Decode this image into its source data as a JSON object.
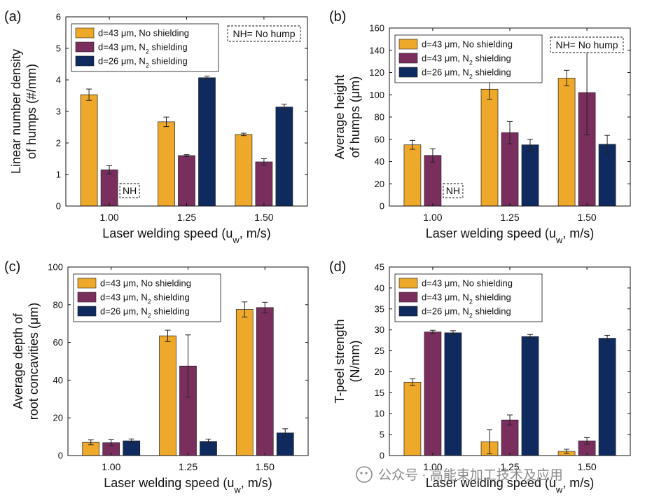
{
  "colors": {
    "s1": "#EEA82A",
    "s2": "#7A2E5E",
    "s3": "#0E2A5E",
    "axis": "#111111",
    "watermark": "#8a8a8a"
  },
  "legend": {
    "s1": {
      "text": "d=43 μm, No shielding"
    },
    "s2": {
      "pre": "d=43 μm, N",
      "sub": "2",
      "post": " shielding"
    },
    "s3": {
      "pre": "d=26 μm, N",
      "sub": "2",
      "post": " shielding"
    }
  },
  "xaxis": {
    "pre": "Laser welding speed (u",
    "sub": "w",
    "post": ", m/s)"
  },
  "nh_note": "NH= No hump",
  "nh_label": "NH",
  "watermark": "公众号 · 高能束加工技术及应用",
  "chart_data": [
    {
      "panel": "(a)",
      "type": "bar",
      "ylabel": [
        "Linear number density",
        "of humps (#/mm)"
      ],
      "categories": [
        "1.00",
        "1.25",
        "1.50"
      ],
      "ylim": [
        0,
        6
      ],
      "yticks": [
        0,
        1,
        2,
        3,
        4,
        5,
        6
      ],
      "series": [
        {
          "name": "d=43 μm, No shielding",
          "values": [
            3.53,
            2.67,
            2.27
          ],
          "errors": [
            0.18,
            0.15,
            0.04
          ]
        },
        {
          "name": "d=43 μm, N2 shielding",
          "values": [
            1.15,
            1.6,
            1.4
          ],
          "errors": [
            0.13,
            0.03,
            0.1
          ]
        },
        {
          "name": "d=26 μm, N2 shielding",
          "values": [
            null,
            4.07,
            3.14
          ],
          "errors": [
            null,
            0.05,
            0.09
          ]
        }
      ],
      "nh_note": true,
      "nh_at_category": 0
    },
    {
      "panel": "(b)",
      "type": "bar",
      "ylabel": [
        "Average height",
        "of humps (μm)"
      ],
      "categories": [
        "1.00",
        "1.25",
        "1.50"
      ],
      "ylim": [
        0,
        160
      ],
      "yticks": [
        0,
        20,
        40,
        60,
        80,
        100,
        120,
        140,
        160
      ],
      "series": [
        {
          "name": "d=43 μm, No shielding",
          "values": [
            55,
            105,
            115
          ],
          "errors": [
            4,
            9,
            7
          ]
        },
        {
          "name": "d=43 μm, N2 shielding",
          "values": [
            45.5,
            66,
            102
          ],
          "errors": [
            6,
            10,
            38
          ]
        },
        {
          "name": "d=26 μm, N2 shielding",
          "values": [
            null,
            55,
            55.5
          ],
          "errors": [
            null,
            5,
            8
          ]
        }
      ],
      "nh_note": true,
      "nh_at_category": 0
    },
    {
      "panel": "(c)",
      "type": "bar",
      "ylabel": [
        "Average depth of",
        "root concavities (μm)"
      ],
      "categories": [
        "1.00",
        "1.25",
        "1.50"
      ],
      "ylim": [
        0,
        100
      ],
      "yticks": [
        0,
        20,
        40,
        60,
        80,
        100
      ],
      "series": [
        {
          "name": "d=43 μm, No shielding",
          "values": [
            7,
            63.5,
            77.5
          ],
          "errors": [
            1.3,
            3,
            4
          ]
        },
        {
          "name": "d=43 μm, N2 shielding",
          "values": [
            6.8,
            47.5,
            78.5
          ],
          "errors": [
            1.6,
            16.5,
            2.8
          ]
        },
        {
          "name": "d=26 μm, N2 shielding",
          "values": [
            7.8,
            7.5,
            12
          ],
          "errors": [
            1,
            1.2,
            2.2
          ]
        }
      ],
      "nh_note": false
    },
    {
      "panel": "(d)",
      "type": "bar",
      "ylabel": [
        "T-peel strength",
        "(N/mm)"
      ],
      "categories": [
        "1.00",
        "1.25",
        "1.50"
      ],
      "ylim": [
        0,
        45
      ],
      "yticks": [
        0,
        5,
        10,
        15,
        20,
        25,
        30,
        35,
        40,
        45
      ],
      "series": [
        {
          "name": "d=43 μm, No shielding",
          "values": [
            17.5,
            3.3,
            1
          ],
          "errors": [
            0.8,
            2.9,
            0.5
          ]
        },
        {
          "name": "d=43 μm, N2 shielding",
          "values": [
            29.5,
            8.5,
            3.5
          ],
          "errors": [
            0.4,
            1.2,
            0.8
          ]
        },
        {
          "name": "d=26 μm, N2 shielding",
          "values": [
            29.3,
            28.4,
            28
          ],
          "errors": [
            0.5,
            0.5,
            0.7
          ]
        }
      ],
      "nh_note": false
    }
  ]
}
